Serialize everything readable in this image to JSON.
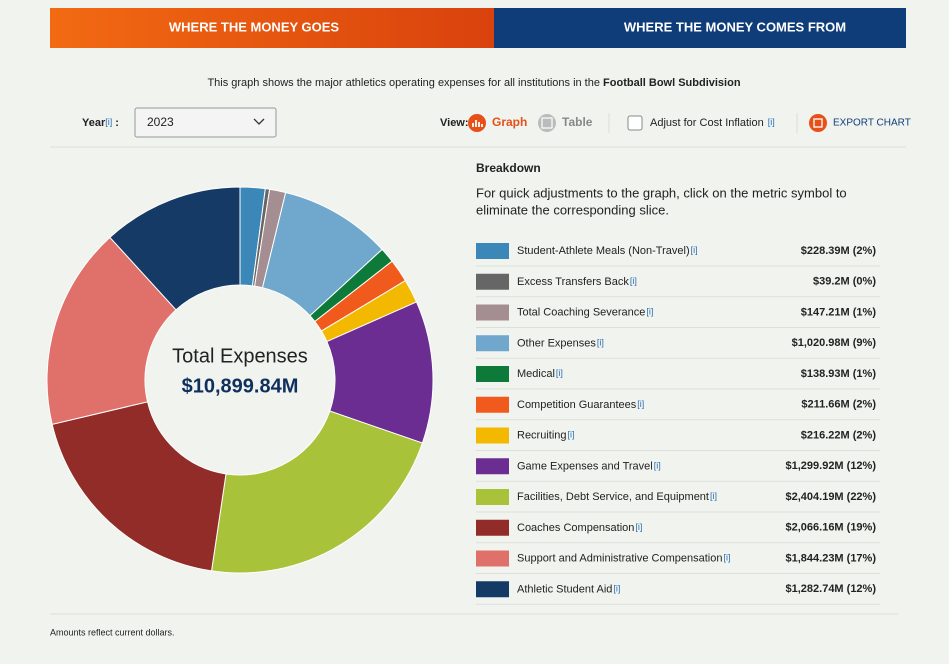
{
  "tabs": [
    "WHERE THE MONEY GOES",
    "WHERE THE MONEY COMES FROM"
  ],
  "description": {
    "text": "This graph shows the major athletics operating expenses for all institutions in the ",
    "emphasis": "Football Bowl Subdivision"
  },
  "controls": {
    "year_label": "Year",
    "year_separator": ":",
    "year": "2023",
    "view_label": "View:",
    "view_graph": "Graph",
    "view_table": "Table",
    "inflation": "Adjust for Cost Inflation",
    "export": "EXPORT CHART"
  },
  "info_marker": "[i]",
  "chart_data": {
    "type": "pie",
    "center_title": "Total Expenses",
    "center_value": "$10,899.84M",
    "legend_title": "Breakdown",
    "legend_note": [
      "For quick adjustments to the graph, click on the metric symbol to",
      "eliminate the corresponding slice."
    ],
    "categories": [
      "Student-Athlete Meals (Non-Travel)",
      "Excess Transfers Back",
      "Total Coaching Severance",
      "Other Expenses",
      "Medical",
      "Competition Guarantees",
      "Recruiting",
      "Game Expenses and Travel",
      "Facilities, Debt Service, and Equipment",
      "Coaches Compensation",
      "Support and Administrative Compensation",
      "Athletic Student Aid"
    ],
    "values": [
      228.39,
      39.2,
      147.21,
      1020.98,
      138.93,
      211.66,
      216.22,
      1299.92,
      2404.19,
      2066.16,
      1844.23,
      1282.74
    ],
    "value_labels": [
      "$228.39M (2%)",
      "$39.2M (0%)",
      "$147.21M (1%)",
      "$1,020.98M (9%)",
      "$138.93M (1%)",
      "$211.66M (2%)",
      "$216.22M (2%)",
      "$1,299.92M (12%)",
      "$2,404.19M (22%)",
      "$2,066.16M (19%)",
      "$1,844.23M (17%)",
      "$1,282.74M (12%)"
    ],
    "colors": [
      "#3a87b8",
      "#666666",
      "#a58e92",
      "#6fa8cc",
      "#0e7a3a",
      "#f05a1c",
      "#f3b800",
      "#6b2d91",
      "#a8c23a",
      "#922c28",
      "#e0706a",
      "#163a66"
    ]
  },
  "footnote": "Amounts reflect current dollars."
}
